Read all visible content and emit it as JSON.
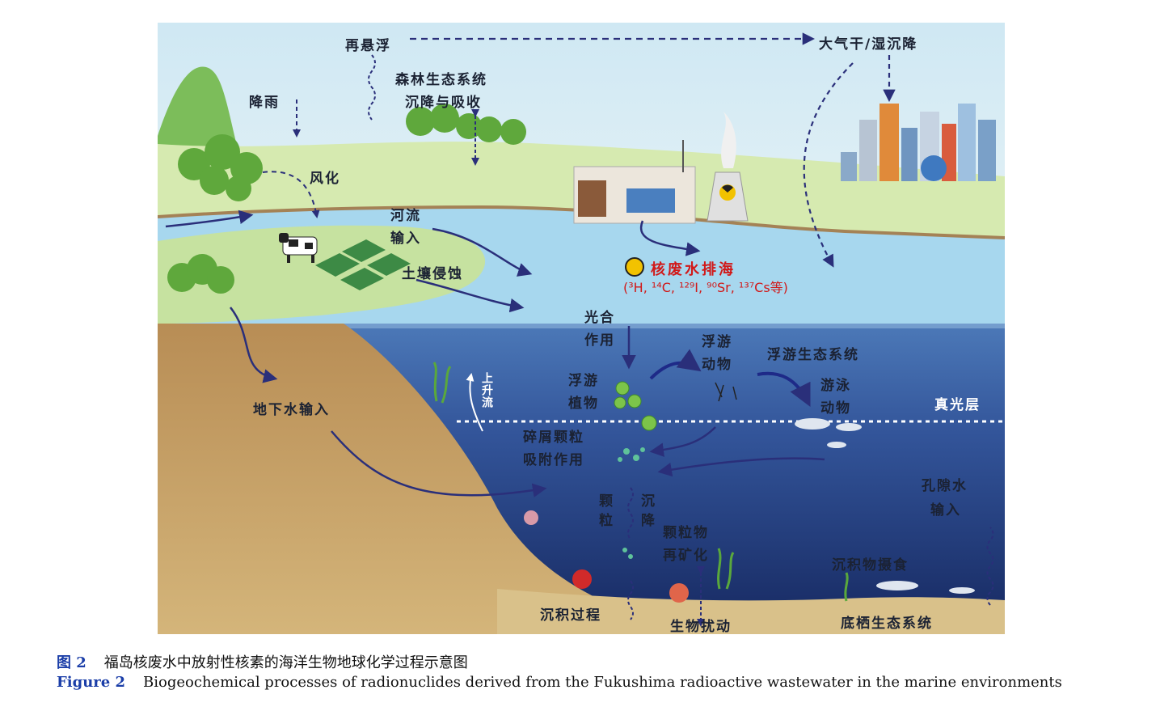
{
  "figure": {
    "labels": {
      "resuspension": "再悬浮",
      "atmos_deposition": "大气干/湿沉降",
      "rain": "降雨",
      "forest_ecosystem": "森林生态系统",
      "forest_deposition": "沉降与吸收",
      "weathering": "风化",
      "river": "河流",
      "river_input": "输入",
      "soil_erosion": "土壤侵蚀",
      "wastewater_discharge": "核废水排海",
      "nuclides": "(³H, ¹⁴C, ¹²⁹I, ⁹⁰Sr, ¹³⁷Cs等)",
      "photosynthesis_1": "光合",
      "photosynthesis_2": "作用",
      "zooplankton_1": "浮游",
      "zooplankton_2": "动物",
      "plankton_ecosystem": "浮游生态系统",
      "phytoplankton_1": "浮游",
      "phytoplankton_2": "植物",
      "nekton_1": "游泳",
      "nekton_2": "动物",
      "euphotic_layer": "真光层",
      "upwelling": "上升流",
      "groundwater_input": "地下水输入",
      "detritus_1": "碎屑颗粒",
      "detritus_2": "吸附作用",
      "particle_settling_1": "颗粒",
      "particle_settling_2": "沉降",
      "remineralization_1": "颗粒物",
      "remineralization_2": "再矿化",
      "porewater_1": "孔隙水",
      "porewater_2": "输入",
      "sediment_ingestion": "沉积物摄食",
      "sedimentation": "沉积过程",
      "bioturbation": "生物扰动",
      "benthic_ecosystem": "底栖生态系统"
    },
    "colors": {
      "sky": "#d4eaf4",
      "land": "#cde3a3",
      "river": "#b6def0",
      "ocean_top": "#a9d6ec",
      "ocean_deep": "#1d2f6d",
      "seabed": "#c8ac72",
      "arrow": "#2a2f7a",
      "label_red": "#d11919"
    }
  },
  "caption": {
    "cn_label": "图 2",
    "cn_text": "福岛核废水中放射性核素的海洋生物地球化学过程示意图",
    "en_label": "Figure 2",
    "en_text": "Biogeochemical processes of radionuclides derived from the Fukushima radioactive wastewater in the marine environments"
  }
}
